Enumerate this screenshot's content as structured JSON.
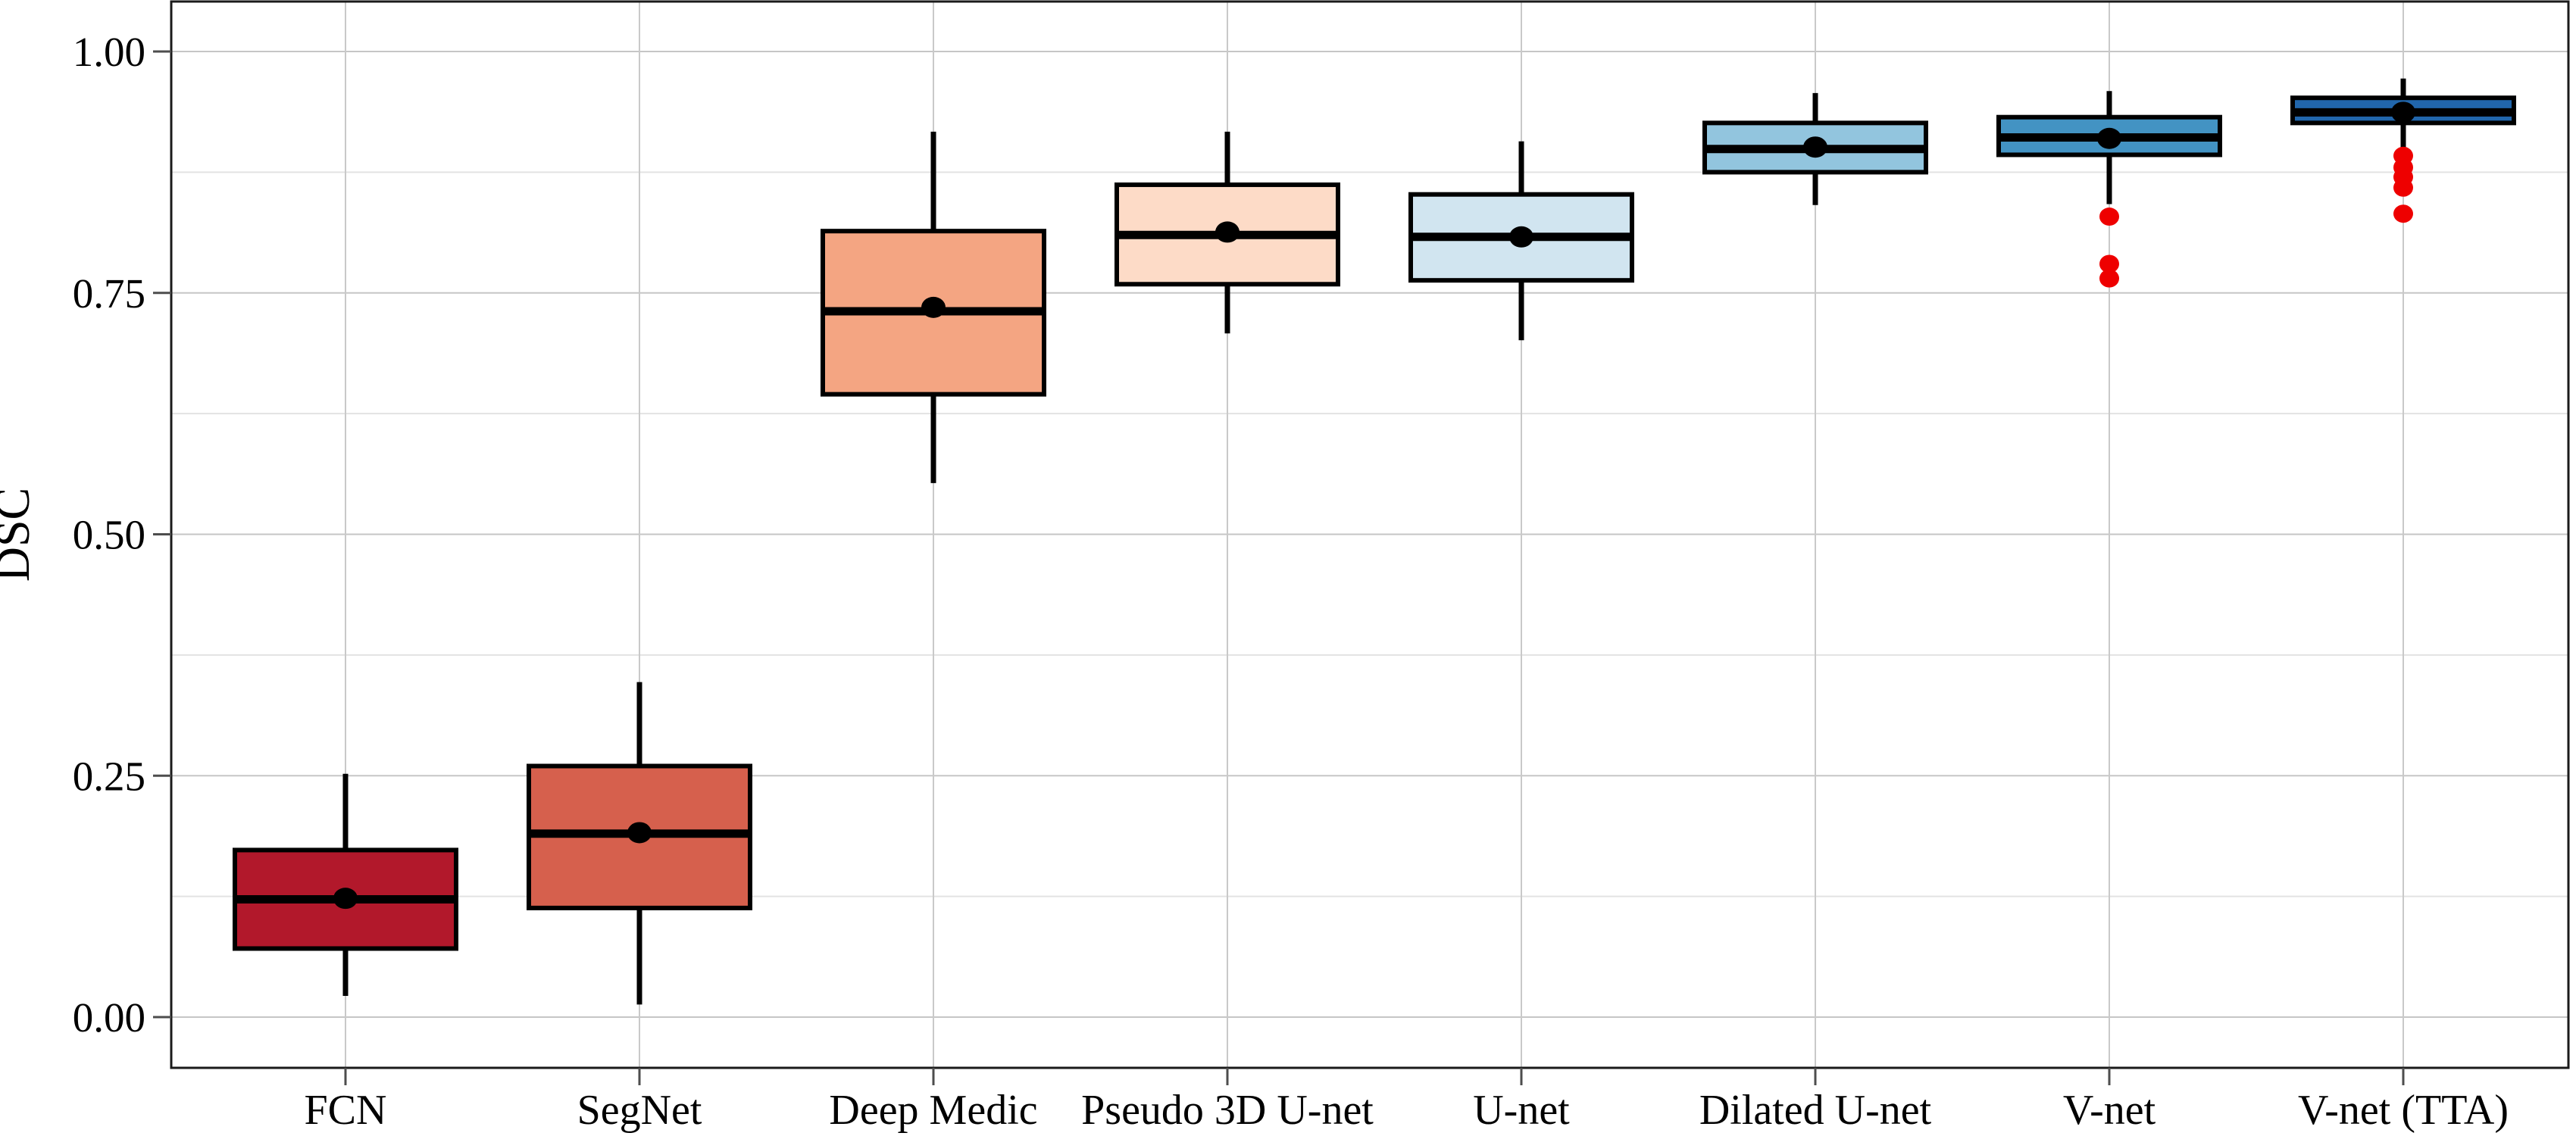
{
  "chart_data": {
    "type": "boxplot",
    "title": "",
    "xlabel": "",
    "ylabel": "DSC",
    "ylim": [
      -0.052,
      1.052
    ],
    "yticks": [
      0.0,
      0.25,
      0.5,
      0.75,
      1.0
    ],
    "ytick_labels": [
      "0.00",
      "0.25",
      "0.50",
      "0.75",
      "1.00"
    ],
    "minor_gridlines": [
      0.125,
      0.375,
      0.625,
      0.875
    ],
    "grid": "major-and-minor-horizontal, vertical-at-each-category",
    "legend_position": "none",
    "categories": [
      "FCN",
      "SegNet",
      "Deep Medic",
      "Pseudo 3D U-net",
      "U-net",
      "Dilated U-net",
      "V-net",
      "V-net (TTA)"
    ],
    "series": [
      {
        "name": "FCN",
        "fill": "#b2182b",
        "whisker_low": 0.022,
        "q1": 0.071,
        "median": 0.122,
        "q3": 0.173,
        "whisker_high": 0.252,
        "mean": 0.123,
        "outliers": []
      },
      {
        "name": "SegNet",
        "fill": "#d6604d",
        "whisker_low": 0.013,
        "q1": 0.113,
        "median": 0.19,
        "q3": 0.26,
        "whisker_high": 0.347,
        "mean": 0.191,
        "outliers": []
      },
      {
        "name": "Deep Medic",
        "fill": "#f4a582",
        "whisker_low": 0.553,
        "q1": 0.645,
        "median": 0.731,
        "q3": 0.814,
        "whisker_high": 0.917,
        "mean": 0.735,
        "outliers": []
      },
      {
        "name": "Pseudo 3D U-net",
        "fill": "#fddbc7",
        "whisker_low": 0.708,
        "q1": 0.759,
        "median": 0.81,
        "q3": 0.862,
        "whisker_high": 0.917,
        "mean": 0.813,
        "outliers": []
      },
      {
        "name": "U-net",
        "fill": "#d1e5f0",
        "whisker_low": 0.701,
        "q1": 0.763,
        "median": 0.808,
        "q3": 0.852,
        "whisker_high": 0.907,
        "mean": 0.808,
        "outliers": []
      },
      {
        "name": "Dilated U-net",
        "fill": "#92c5de",
        "whisker_low": 0.841,
        "q1": 0.875,
        "median": 0.899,
        "q3": 0.926,
        "whisker_high": 0.957,
        "mean": 0.901,
        "outliers": []
      },
      {
        "name": "V-net",
        "fill": "#4393c3",
        "whisker_low": 0.842,
        "q1": 0.893,
        "median": 0.911,
        "q3": 0.932,
        "whisker_high": 0.959,
        "mean": 0.91,
        "outliers": [
          0.829,
          0.78,
          0.765
        ]
      },
      {
        "name": "V-net (TTA)",
        "fill": "#2166ac",
        "whisker_low": 0.9,
        "q1": 0.926,
        "median": 0.937,
        "q3": 0.952,
        "whisker_high": 0.972,
        "mean": 0.937,
        "outliers": [
          0.892,
          0.88,
          0.87,
          0.859,
          0.832
        ]
      }
    ],
    "colors": {
      "panel_background": "#ffffff",
      "panel_border": "#1a1a1a",
      "grid_major": "#c6c6c6",
      "grid_minor": "#e3e3e3",
      "grid_vertical": "#c9c9c9",
      "box_border": "#000000",
      "median_line": "#000000",
      "whisker": "#000000",
      "mean_dot": "#000000",
      "outlier_dot": "#ee0000",
      "tick_mark": "#4d4d4d",
      "text": "#000000"
    }
  }
}
